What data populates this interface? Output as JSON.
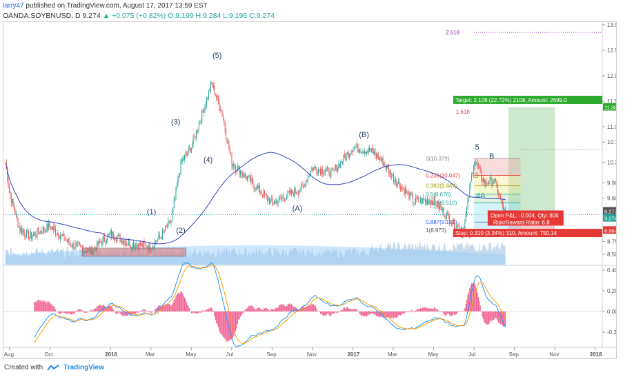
{
  "header": {
    "user": "larry47",
    "published_text": "published on TradingView.com, August 17, 2017 13:59 EST",
    "symbol": "OANDA:SOYBNUSD, D",
    "last": "9.274",
    "change": "+0.075 (+0.82%)",
    "ohlc": "O:9.199 H:9.284 L:9.195 C:9.274"
  },
  "footer": {
    "created_with": "Created with",
    "brand": "TradingView"
  },
  "colors": {
    "up": "#26a69a",
    "down": "#ef5350",
    "ma": "#3040c0",
    "macd": "#2196f3",
    "signal": "#ff9800",
    "hist": "#f06292",
    "target": "#2eab2e",
    "stop": "#e53935"
  },
  "chart_data": {
    "type": "candlestick",
    "x_ticks": [
      "Aug",
      "Oct",
      "2016",
      "Mar",
      "May",
      "Jul",
      "Sep",
      "Nov",
      "2017",
      "Mar",
      "May",
      "Jul",
      "Sep",
      "Nov",
      "2018"
    ],
    "price_ticks": [
      "13.000",
      "12.500",
      "12.000",
      "11.500",
      "11.000",
      "10.700",
      "10.300",
      "9.900",
      "9.600",
      "9.200",
      "8.750",
      "8.500"
    ],
    "price_labels": [
      {
        "text": "11.385",
        "color": "#2eab2e"
      },
      {
        "text": "9.277",
        "color": "#555555"
      },
      {
        "text": "9.274",
        "color": "#26a69a"
      },
      {
        "text": "8.967",
        "color": "#e53935"
      }
    ],
    "macd_ticks": [
      "0.4000",
      "0.2000",
      "0.0000",
      "-0.2000"
    ],
    "price_anchors": [
      [
        "Jul 2015",
        10.3
      ],
      [
        "Aug 2015",
        9.7
      ],
      [
        "Aug 2015",
        9.0
      ],
      [
        "Sep 2015",
        8.85
      ],
      [
        "Oct 2015",
        9.05
      ],
      [
        "Nov 2015",
        8.7
      ],
      [
        "Dec 2015",
        8.55
      ],
      [
        "Jan 2016",
        8.9
      ],
      [
        "Feb 2016",
        8.7
      ],
      [
        "Mar 2016",
        8.65
      ],
      [
        "Mar 2016",
        8.85
      ],
      [
        "Apr 2016",
        9.15
      ],
      [
        "Apr 2016",
        10.3
      ],
      [
        "May 2016",
        10.6
      ],
      [
        "May 2016",
        11.2
      ],
      [
        "Jun 2016",
        11.85
      ],
      [
        "Jun 2016",
        11.3
      ],
      [
        "Jul 2016",
        10.3
      ],
      [
        "Aug 2016",
        9.9
      ],
      [
        "Sep 2016",
        9.5
      ],
      [
        "Oct 2016",
        9.7
      ],
      [
        "Oct 2016",
        9.8
      ],
      [
        "Nov 2016",
        10.2
      ],
      [
        "Dec 2016",
        10.1
      ],
      [
        "Jan 2017",
        10.6
      ],
      [
        "Feb 2017",
        10.5
      ],
      [
        "Feb 2017",
        10.3
      ],
      [
        "Mar 2017",
        10.0
      ],
      [
        "Apr 2017",
        9.55
      ],
      [
        "May 2017",
        9.55
      ],
      [
        "Jun 2017",
        9.1
      ],
      [
        "Jun 2017",
        9.0
      ],
      [
        "Jul 2017",
        10.35
      ],
      [
        "Jul 2017",
        9.9
      ],
      [
        "Aug 2017",
        9.95
      ],
      [
        "Aug 2017",
        9.27
      ]
    ],
    "wave_labels": [
      "(5)",
      "(3)",
      "(4)",
      "(1)",
      "(2)",
      "(B)",
      "(A)",
      "(C)",
      "5",
      "B",
      "3",
      "4A",
      "C"
    ],
    "fibonacci": [
      {
        "ratio": "0(10.379)",
        "color": "#888888"
      },
      {
        "ratio": "0.236(10.047)",
        "color": "#e53935"
      },
      {
        "ratio": "0.382(9.842)",
        "color": "#9aa000"
      },
      {
        "ratio": "0.5(9.676)",
        "color": "#26a69a"
      },
      {
        "ratio": "0.618(9.510)",
        "color": "#26a69a"
      },
      {
        "ratio": "0.887(9.131)",
        "color": "#2962ff"
      },
      {
        "ratio": "1(8.973)",
        "color": "#555555"
      },
      {
        "ratio": "1.618",
        "color": "#e53935"
      },
      {
        "ratio": "2.618",
        "color": "#9c27b0"
      }
    ],
    "position": {
      "target": "Target: 2.108 (22.72%) 2108, Amount: 2699.0",
      "stop": "Stop: 0.310 (3.34%) 310, Amount: 750.14",
      "open_pnl": "Open P&L: -0.004, Qty: 806",
      "risk_reward": "Risk/Reward Ratio: 6.8"
    }
  }
}
